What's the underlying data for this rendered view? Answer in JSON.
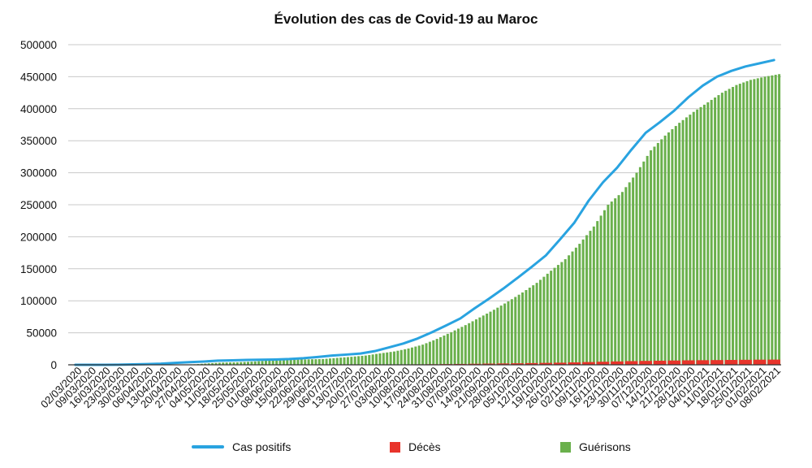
{
  "chart_data": {
    "type": "bar",
    "title": "Évolution des cas de Covid-19 au Maroc",
    "xlabel": "",
    "ylabel": "",
    "ylim": [
      0,
      500000
    ],
    "yticks": [
      0,
      50000,
      100000,
      150000,
      200000,
      250000,
      300000,
      350000,
      400000,
      450000,
      500000
    ],
    "x_tick_labels": [
      "02/03/2020",
      "09/03/2020",
      "16/03/2020",
      "23/03/2020",
      "30/03/2020",
      "06/04/2020",
      "13/04/2020",
      "20/04/2020",
      "27/04/2020",
      "04/05/2020",
      "11/05/2020",
      "18/05/2020",
      "25/05/2020",
      "01/06/2020",
      "08/06/2020",
      "15/06/2020",
      "22/06/2020",
      "29/06/2020",
      "06/07/2020",
      "13/07/2020",
      "20/07/2020",
      "27/07/2020",
      "03/08/2020",
      "10/08/2020",
      "17/08/2020",
      "24/08/2020",
      "31/08/2020",
      "07/09/2020",
      "14/09/2020",
      "21/09/2020",
      "28/09/2020",
      "05/10/2020",
      "12/10/2020",
      "19/10/2020",
      "26/10/2020",
      "02/11/2020",
      "09/11/2020",
      "16/11/2020",
      "23/11/2020",
      "30/11/2020",
      "07/12/2020",
      "14/12/2020",
      "21/12/2020",
      "28/12/2020",
      "04/01/2021",
      "11/01/2021",
      "18/01/2021",
      "25/01/2021",
      "01/02/2021",
      "08/02/2021"
    ],
    "grid": true,
    "legend_position": "bottom",
    "colors": {
      "positifs": "#29a3e0",
      "deces": "#e8342b",
      "guerisons": "#6ab04c",
      "grid": "#c8c8c8"
    },
    "series": [
      {
        "name": "Cas positifs",
        "type": "line",
        "values": [
          1,
          2,
          44,
          140,
          556,
          1120,
          1763,
          3046,
          4065,
          5053,
          6512,
          6972,
          7601,
          7922,
          8302,
          9074,
          10344,
          12290,
          14379,
          15936,
          17562,
          21387,
          27217,
          33237,
          41017,
          50812,
          61399,
          72394,
          88203,
          103119,
          118781,
          135601,
          152859,
          170863,
          196106,
          222106,
          256345,
          284899,
          308022,
          335985,
          362387,
          379000,
          397000,
          418000,
          436000,
          450000,
          459000,
          466000,
          471000,
          476000
        ]
      },
      {
        "name": "Décès",
        "type": "bar",
        "values": [
          0,
          0,
          2,
          8,
          36,
          80,
          126,
          155,
          173,
          181,
          188,
          192,
          199,
          206,
          208,
          212,
          214,
          225,
          235,
          255,
          280,
          334,
          417,
          556,
          705,
          899,
          1127,
          1324,
          1578,
          1855,
          2113,
          2373,
          2675,
          3000,
          3300,
          3800,
          4300,
          4800,
          5300,
          5800,
          6100,
          6400,
          6700,
          7000,
          7200,
          7400,
          7600,
          7800,
          8000,
          8100
        ]
      },
      {
        "name": "Guérisons",
        "type": "bar",
        "values": [
          0,
          0,
          2,
          7,
          41,
          143,
          216,
          393,
          829,
          2324,
          3487,
          3916,
          4912,
          6410,
          7493,
          7998,
          8520,
          9000,
          10800,
          12500,
          14500,
          17800,
          20800,
          25500,
          31500,
          40500,
          51000,
          62000,
          74000,
          86000,
          99000,
          113000,
          128000,
          147000,
          165000,
          189000,
          216000,
          250000,
          270000,
          300000,
          335000,
          358000,
          378000,
          395000,
          410000,
          425000,
          437000,
          445000,
          450000,
          454000
        ]
      }
    ]
  }
}
